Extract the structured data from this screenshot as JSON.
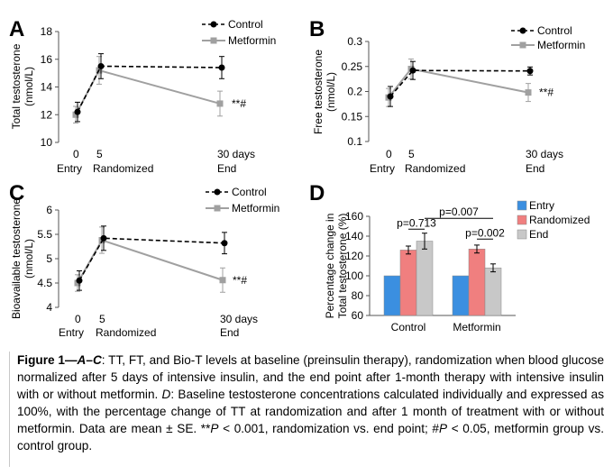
{
  "chart_data": [
    {
      "panel": "A",
      "type": "line",
      "ylabel": "Total testosterone (nmol/L)",
      "ylim": [
        10,
        18
      ],
      "yticks": [
        "10",
        "12",
        "14",
        "16",
        "18"
      ],
      "x": [
        0,
        5,
        30
      ],
      "xtick_labels": [
        "0",
        "5",
        "30 days"
      ],
      "xsub_labels": [
        "Entry",
        "Randomized",
        "End"
      ],
      "series": [
        {
          "name": "Control",
          "style": "dashed",
          "marker": "circle",
          "color": "#000000",
          "values": [
            12.2,
            15.5,
            15.4
          ],
          "err": [
            0.7,
            0.9,
            0.8
          ]
        },
        {
          "name": "Metformin",
          "style": "solid",
          "marker": "square",
          "color": "#a0a0a0",
          "values": [
            12.0,
            15.2,
            12.8
          ],
          "err": [
            0.6,
            1.0,
            0.9
          ]
        }
      ],
      "annotation": "**#"
    },
    {
      "panel": "B",
      "type": "line",
      "ylabel": "Free testosterone (nmol/L)",
      "ylim": [
        0.1,
        0.3
      ],
      "yticks": [
        "0.1",
        "0.15",
        "0.2",
        "0.25",
        "0.3"
      ],
      "x": [
        0,
        5,
        30
      ],
      "xtick_labels": [
        "0",
        "5",
        "30 days"
      ],
      "xsub_labels": [
        "Entry",
        "Randomized",
        "End"
      ],
      "series": [
        {
          "name": "Control",
          "style": "dashed",
          "marker": "circle",
          "color": "#000000",
          "values": [
            0.19,
            0.242,
            0.241
          ],
          "err": [
            0.02,
            0.018,
            0.008
          ]
        },
        {
          "name": "Metformin",
          "style": "solid",
          "marker": "square",
          "color": "#a0a0a0",
          "values": [
            0.188,
            0.245,
            0.198
          ],
          "err": [
            0.018,
            0.02,
            0.018
          ]
        }
      ],
      "annotation": "**#"
    },
    {
      "panel": "C",
      "type": "line",
      "ylabel": "Bioavailable testosterone (nmol/L)",
      "ylim": [
        4,
        6
      ],
      "yticks": [
        "4",
        "4.5",
        "5",
        "5.5",
        "6"
      ],
      "x": [
        0,
        5,
        30
      ],
      "xtick_labels": [
        "0",
        "5",
        "30 days"
      ],
      "xsub_labels": [
        "Entry",
        "Randomized",
        "End"
      ],
      "series": [
        {
          "name": "Control",
          "style": "dashed",
          "marker": "circle",
          "color": "#000000",
          "values": [
            4.55,
            5.42,
            5.32
          ],
          "err": [
            0.2,
            0.25,
            0.22
          ]
        },
        {
          "name": "Metformin",
          "style": "solid",
          "marker": "square",
          "color": "#a0a0a0",
          "values": [
            4.5,
            5.38,
            4.56
          ],
          "err": [
            0.17,
            0.27,
            0.25
          ]
        }
      ],
      "annotation": "**#"
    },
    {
      "panel": "D",
      "type": "bar",
      "ylabel": "Percentage change in Total testosterone (%)",
      "ylim": [
        60,
        160
      ],
      "yticks": [
        "60",
        "80",
        "100",
        "120",
        "140",
        "160"
      ],
      "categories": [
        "Control",
        "Metformin"
      ],
      "series": [
        {
          "name": "Entry",
          "color": "#3b8fe0",
          "values": [
            100,
            100
          ],
          "err": [
            0,
            0
          ]
        },
        {
          "name": "Randomized",
          "color": "#f07f7f",
          "values": [
            126,
            127
          ],
          "err": [
            4,
            4
          ]
        },
        {
          "name": "End",
          "color": "#c8c8c8",
          "values": [
            135,
            108
          ],
          "err": [
            8,
            4
          ]
        }
      ],
      "annotations": {
        "control": "p=0.713",
        "metformin": "p=0.002",
        "between": "p=0.007"
      }
    }
  ],
  "caption": {
    "label": "Figure 1—",
    "label_italic": "A",
    "label_dash": "–",
    "label_italic2": "C",
    "text1": ": TT, FT, and Bio-T levels at baseline (preinsulin therapy), randomization when blood glucose normalized after 5 days of intensive insulin, and the end point after 1-month therapy with intensive insulin with or without metformin. ",
    "d_label": "D",
    "text2": ": Baseline testosterone concentrations calculated individually and expressed as 100%, with the percentage change of TT at randomization and after 1 month of treatment with or without metformin. Data are mean ± SE. **",
    "p1": "P",
    "text3": " < 0.001, randomization vs. end point; #",
    "p2": "P",
    "text4": " < 0.05, metformin group vs. control group."
  }
}
